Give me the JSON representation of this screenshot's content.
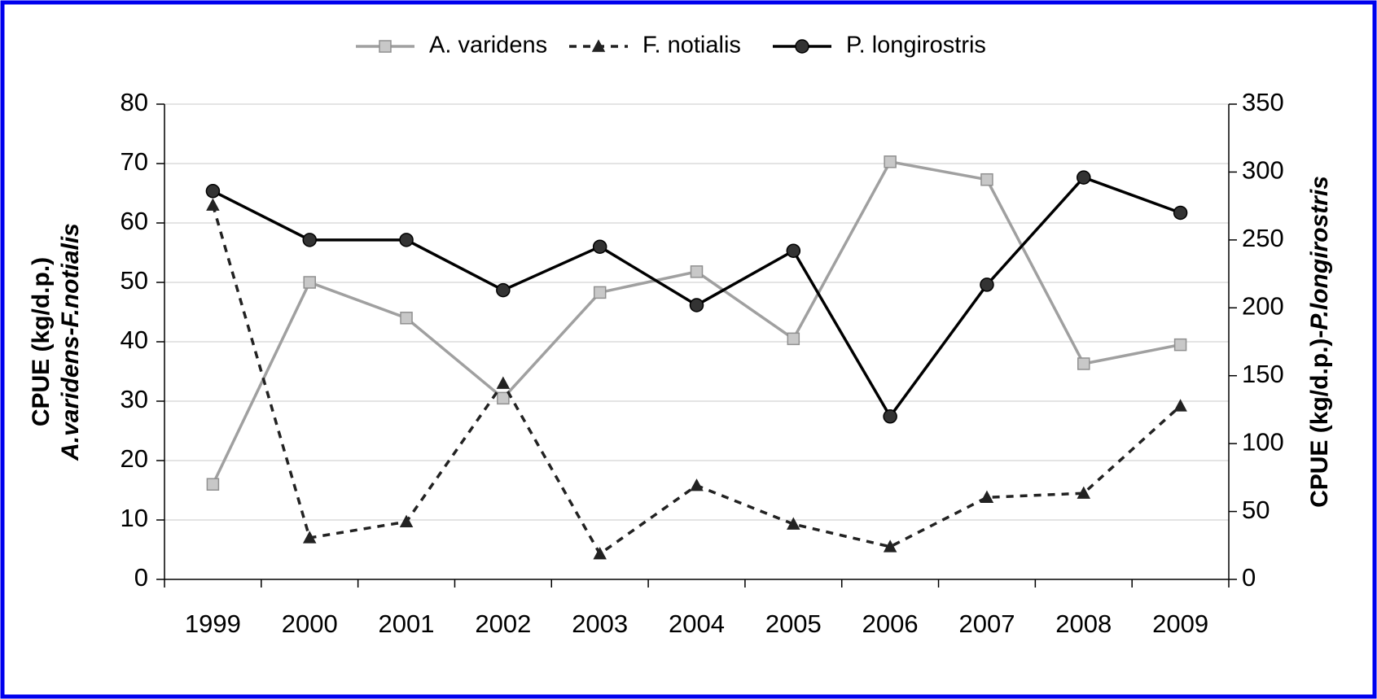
{
  "chart_data": {
    "type": "line",
    "y_label": [
      "CPUE (kg/d.p.)",
      "A.varidens-F.notialis"
    ],
    "y2_label": [
      "CPUE (kg/d.p.)-",
      "P.longirostris"
    ],
    "categories": [
      "1999",
      "2000",
      "2001",
      "2002",
      "2003",
      "2004",
      "2005",
      "2006",
      "2007",
      "2008",
      "2009"
    ],
    "series": [
      {
        "name": "A. varidens",
        "color": "#a0a0a0",
        "marker": "square",
        "dash": false,
        "values": [
          16,
          50,
          44,
          30.5,
          48.3,
          51.8,
          40.5,
          70.3,
          67.3,
          36.3,
          39.5
        ]
      },
      {
        "name": "F. notialis",
        "color": "#222222",
        "marker": "triangle",
        "dash": true,
        "values": [
          63,
          7,
          9.7,
          33,
          4.3,
          15.8,
          9.3,
          5.5,
          13.8,
          14.5,
          29.2
        ]
      },
      {
        "name": "P. longirostris",
        "color": "#000000",
        "marker": "circle",
        "dash": false,
        "axis": "y2",
        "values": [
          286,
          250,
          250,
          213,
          245,
          202,
          242,
          120,
          217,
          296,
          270
        ]
      }
    ],
    "ylim": [
      0,
      80
    ],
    "yticks": [
      0,
      10,
      20,
      30,
      40,
      50,
      60,
      70,
      80
    ],
    "y2lim": [
      0,
      350
    ],
    "y2ticks": [
      0,
      50,
      100,
      150,
      200,
      250,
      300,
      350
    ],
    "grid": true,
    "legend": "top"
  }
}
